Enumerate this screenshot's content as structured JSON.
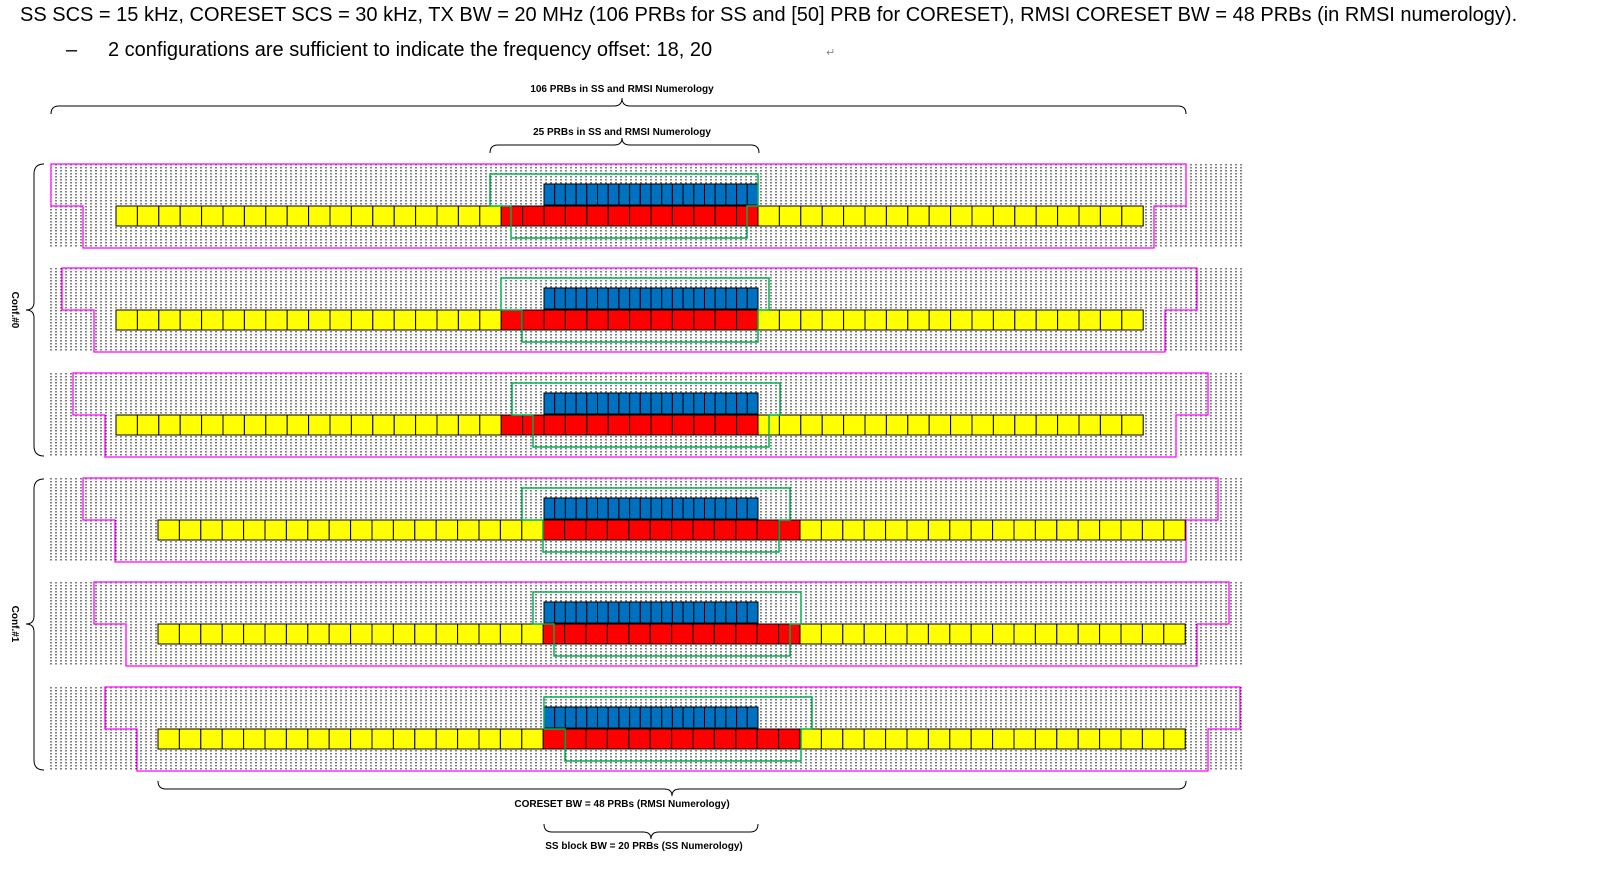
{
  "header": {
    "line1": "SS SCS = 15 kHz, CORESET SCS = 30 kHz, TX BW = 20 MHz (106 PRBs for SS and [50] PRB for CORESET), RMSI CORESET BW = 48 PRBs (in RMSI numerology).",
    "bullet_dash": "–",
    "line2": "2 configurations are sufficient to indicate the frequency offset: 18, 20",
    "return_mark": "↵"
  },
  "diagram": {
    "label_106": "106 PRBs in SS and RMSI Numerology",
    "label_25": "25 PRBs in SS and RMSI Numerology",
    "label_coreset_bw": "CORESET BW = 48 PRBs (RMSI Numerology)",
    "label_ss_block_bw": "SS block BW = 20 PRBs (SS Numerology)",
    "groups": [
      {
        "label": "Conf.#0",
        "offset": 18
      },
      {
        "label": "Conf.#1",
        "offset": 20
      }
    ],
    "colors": {
      "yellow": "#ffff00",
      "red": "#ff0000",
      "blue": "#0070c0",
      "magenta": "#ff00ff",
      "green": "#00b050",
      "dots": "#000000"
    }
  }
}
